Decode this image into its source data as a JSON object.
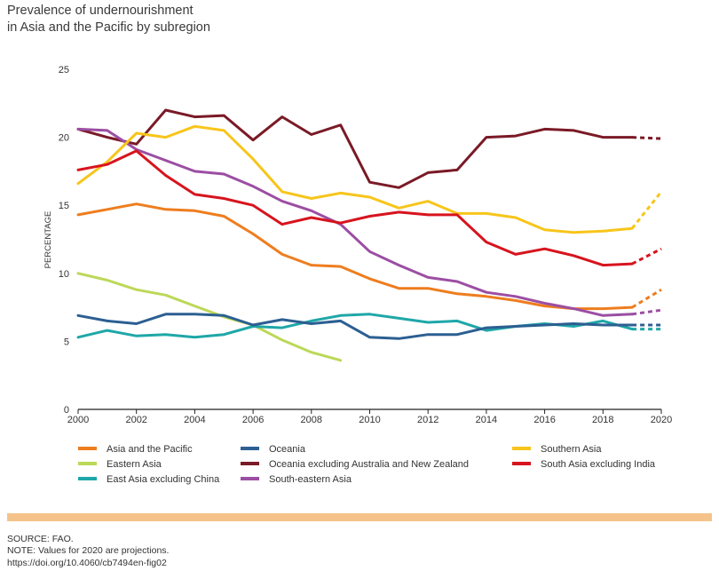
{
  "title": {
    "line1": "Prevalence of undernourishment",
    "line2": "in Asia and the Pacific by subregion"
  },
  "notes": {
    "source": "SOURCE: FAO.",
    "note": "NOTE: Values for 2020 are projections.",
    "doi": "https://doi.org/10.4060/cb7494en-fig02"
  },
  "chart_data": {
    "type": "line",
    "title": "Prevalence of undernourishment in Asia and the Pacific by subregion",
    "xlabel": "",
    "ylabel": "PERCENTAGE",
    "xlim": [
      2000,
      2020
    ],
    "ylim": [
      0,
      25
    ],
    "xticks": [
      2000,
      2002,
      2004,
      2006,
      2008,
      2010,
      2012,
      2014,
      2016,
      2018,
      2020
    ],
    "yticks": [
      0,
      5,
      10,
      15,
      20,
      25
    ],
    "grid": false,
    "legend_position": "bottom",
    "projection_note": "Values for 2020 are projections (dashed segments)",
    "series": [
      {
        "name": "Asia and the Pacific",
        "color": "#ee7d1e",
        "x": [
          2000,
          2001,
          2002,
          2003,
          2004,
          2005,
          2006,
          2007,
          2008,
          2009,
          2010,
          2011,
          2012,
          2013,
          2014,
          2015,
          2016,
          2017,
          2018,
          2019
        ],
        "y": [
          14.3,
          14.7,
          15.1,
          14.7,
          14.6,
          14.2,
          12.9,
          11.4,
          10.6,
          10.5,
          9.6,
          8.9,
          8.9,
          8.5,
          8.3,
          8.0,
          7.6,
          7.4,
          7.4,
          7.5
        ],
        "projection": [
          [
            2019,
            7.5
          ],
          [
            2020,
            8.8
          ]
        ]
      },
      {
        "name": "Eastern Asia",
        "color": "#bcd858",
        "x": [
          2000,
          2001,
          2002,
          2003,
          2004,
          2005,
          2006,
          2007,
          2008,
          2009
        ],
        "y": [
          10.0,
          9.5,
          8.8,
          8.4,
          7.6,
          6.8,
          6.2,
          5.1,
          4.2,
          3.6
        ],
        "projection": []
      },
      {
        "name": "East Asia excluding China",
        "color": "#1fa7a8",
        "x": [
          2000,
          2001,
          2002,
          2003,
          2004,
          2005,
          2006,
          2007,
          2008,
          2009,
          2010,
          2011,
          2012,
          2013,
          2014,
          2015,
          2016,
          2017,
          2018,
          2019
        ],
        "y": [
          5.3,
          5.8,
          5.4,
          5.5,
          5.3,
          5.5,
          6.1,
          6.0,
          6.5,
          6.9,
          7.0,
          6.7,
          6.4,
          6.5,
          5.8,
          6.1,
          6.3,
          6.1,
          6.5,
          5.9
        ],
        "projection": [
          [
            2019,
            5.9
          ],
          [
            2020,
            5.9
          ]
        ]
      },
      {
        "name": "Oceania",
        "color": "#2c5f92",
        "x": [
          2000,
          2001,
          2002,
          2003,
          2004,
          2005,
          2006,
          2007,
          2008,
          2009,
          2010,
          2011,
          2012,
          2013,
          2014,
          2015,
          2016,
          2017,
          2018,
          2019
        ],
        "y": [
          6.9,
          6.5,
          6.3,
          7.0,
          7.0,
          6.9,
          6.2,
          6.6,
          6.3,
          6.5,
          5.3,
          5.2,
          5.5,
          5.5,
          6.0,
          6.1,
          6.2,
          6.3,
          6.2,
          6.2
        ],
        "projection": [
          [
            2019,
            6.2
          ],
          [
            2020,
            6.2
          ]
        ]
      },
      {
        "name": "Oceania excluding Australia and New Zealand",
        "color": "#7a1a26",
        "x": [
          2000,
          2001,
          2002,
          2003,
          2004,
          2005,
          2006,
          2007,
          2008,
          2009,
          2010,
          2011,
          2012,
          2013,
          2014,
          2015,
          2016,
          2017,
          2018,
          2019
        ],
        "y": [
          20.6,
          20.0,
          19.5,
          22.0,
          21.5,
          21.6,
          19.8,
          21.5,
          20.2,
          20.9,
          16.7,
          16.3,
          17.4,
          17.6,
          20.0,
          20.1,
          20.6,
          20.5,
          20.0,
          20.0
        ],
        "projection": [
          [
            2019,
            20.0
          ],
          [
            2020,
            19.9
          ]
        ]
      },
      {
        "name": "South-eastern Asia",
        "color": "#9c4ea3",
        "x": [
          2000,
          2001,
          2002,
          2003,
          2004,
          2005,
          2006,
          2007,
          2008,
          2009,
          2010,
          2011,
          2012,
          2013,
          2014,
          2015,
          2016,
          2017,
          2018,
          2019
        ],
        "y": [
          20.6,
          20.5,
          19.1,
          18.3,
          17.5,
          17.3,
          16.4,
          15.3,
          14.6,
          13.6,
          11.6,
          10.6,
          9.7,
          9.4,
          8.6,
          8.3,
          7.8,
          7.4,
          6.9,
          7.0
        ],
        "projection": [
          [
            2019,
            7.0
          ],
          [
            2020,
            7.3
          ]
        ]
      },
      {
        "name": "Southern Asia",
        "color": "#f7c51b",
        "x": [
          2000,
          2001,
          2002,
          2003,
          2004,
          2005,
          2006,
          2007,
          2008,
          2009,
          2010,
          2011,
          2012,
          2013,
          2014,
          2015,
          2016,
          2017,
          2018,
          2019
        ],
        "y": [
          16.6,
          18.2,
          20.3,
          20.0,
          20.8,
          20.5,
          18.4,
          16.0,
          15.5,
          15.9,
          15.6,
          14.8,
          15.3,
          14.4,
          14.4,
          14.1,
          13.2,
          13.0,
          13.1,
          13.3
        ],
        "projection": [
          [
            2019,
            13.3
          ],
          [
            2020,
            16.0
          ]
        ]
      },
      {
        "name": "South Asia excluding India",
        "color": "#d7141e",
        "x": [
          2000,
          2001,
          2002,
          2003,
          2004,
          2005,
          2006,
          2007,
          2008,
          2009,
          2010,
          2011,
          2012,
          2013,
          2014,
          2015,
          2016,
          2017,
          2018,
          2019
        ],
        "y": [
          17.6,
          18.0,
          19.0,
          17.2,
          15.8,
          15.5,
          15.0,
          13.6,
          14.1,
          13.7,
          14.2,
          14.5,
          14.3,
          14.3,
          12.3,
          11.4,
          11.8,
          11.3,
          10.6,
          10.7
        ],
        "projection": [
          [
            2019,
            10.7
          ],
          [
            2020,
            11.8
          ]
        ]
      }
    ]
  }
}
